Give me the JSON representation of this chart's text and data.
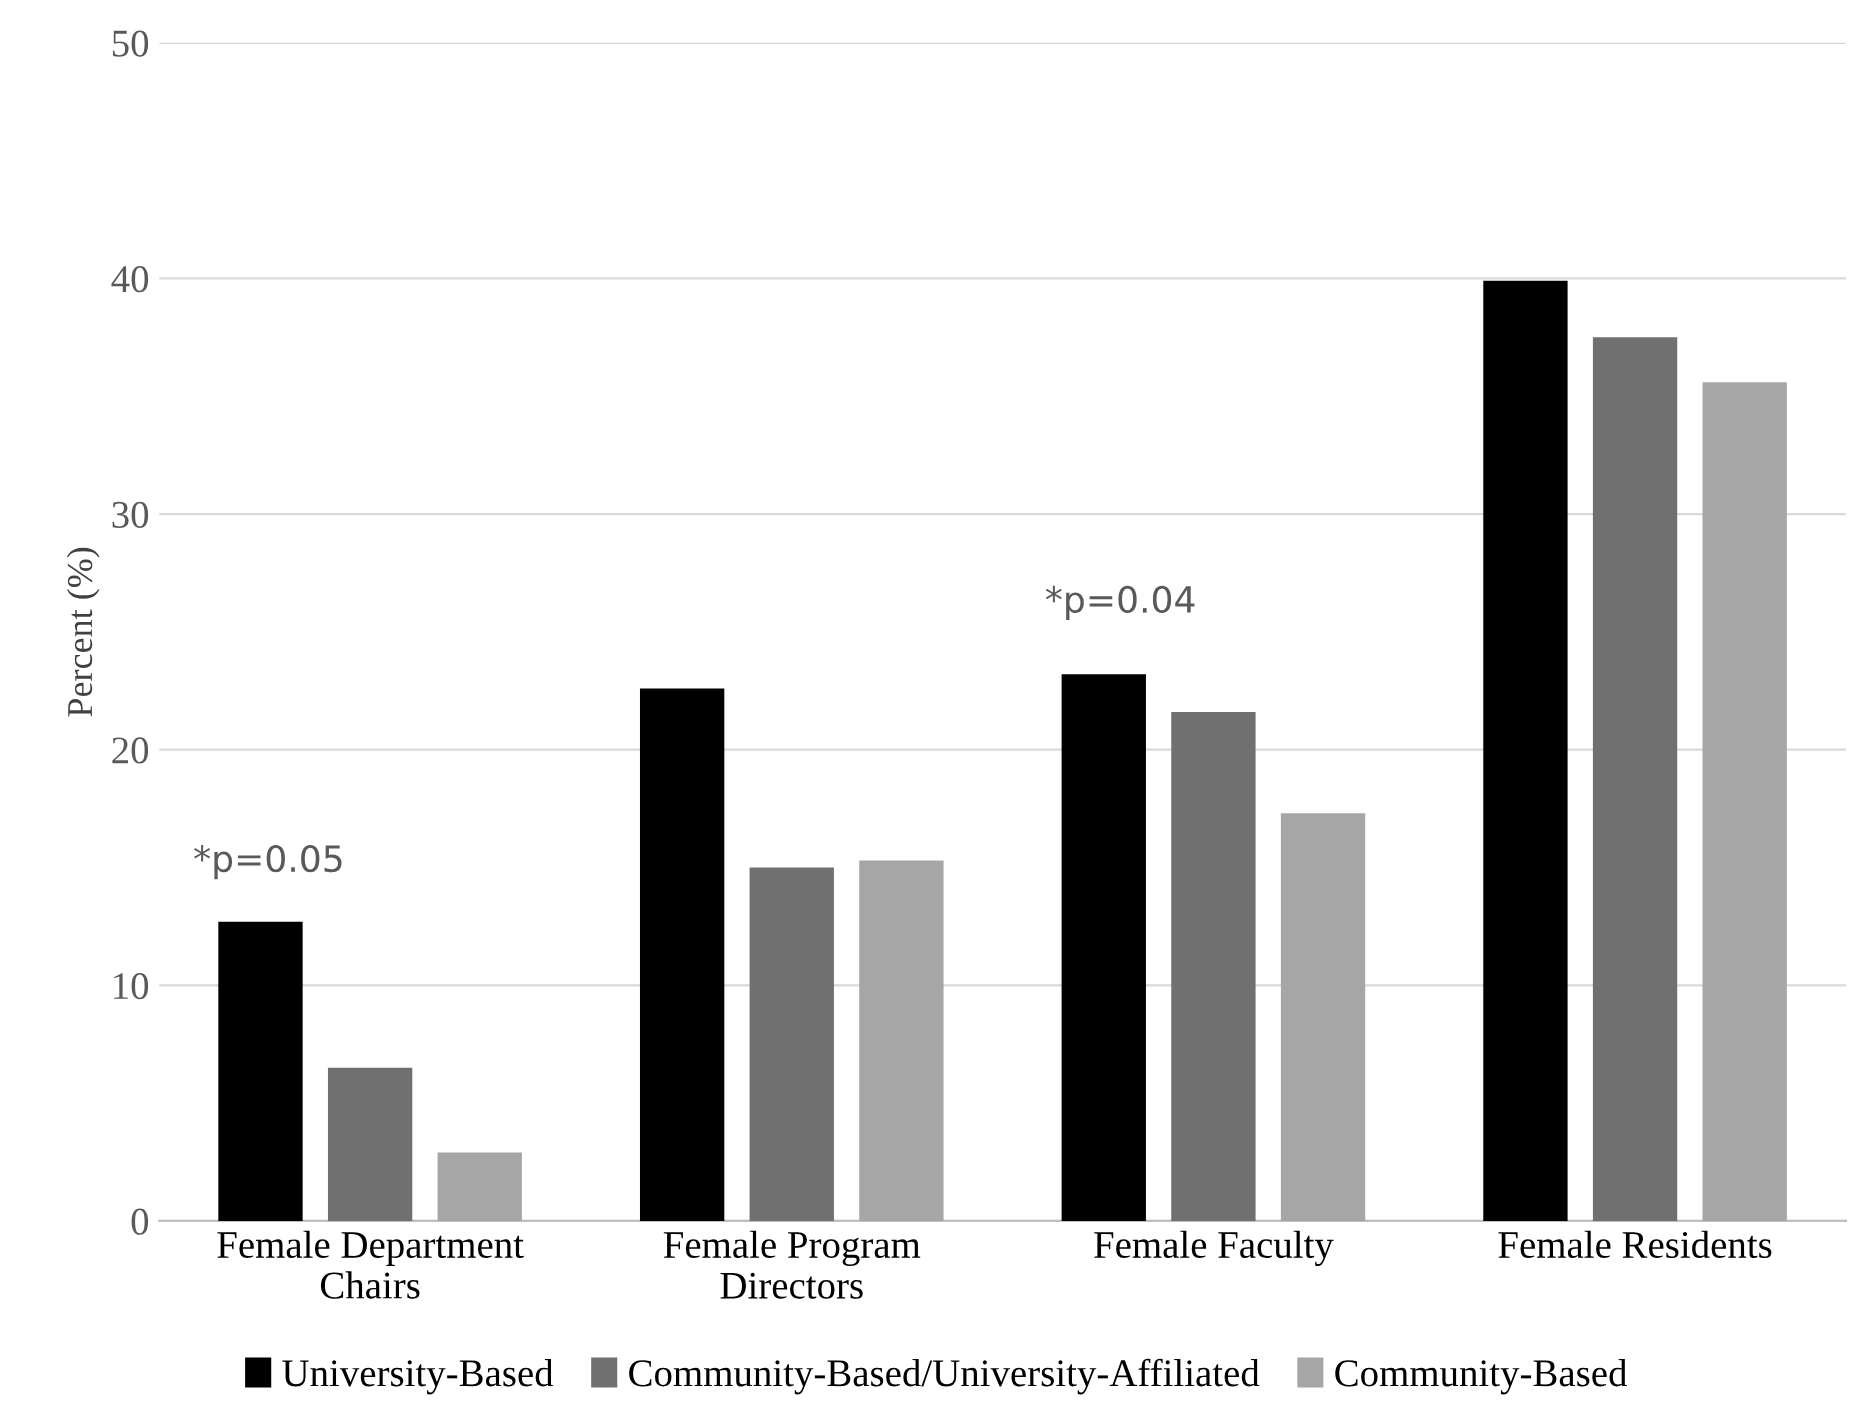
{
  "chart_data": {
    "type": "bar",
    "ylabel": "Percent (%)",
    "categories": [
      "Female Department\nChairs",
      "Female Program\nDirectors",
      "Female Faculty",
      "Female Residents"
    ],
    "series": [
      {
        "name": "University-Based",
        "color": "#000000",
        "values": [
          12.7,
          22.6,
          23.2,
          39.9
        ]
      },
      {
        "name": "Community-Based/University-Affiliated",
        "color": "#707070",
        "values": [
          6.5,
          15.0,
          21.6,
          37.5
        ]
      },
      {
        "name": "Community-Based",
        "color": "#a6a6a6",
        "values": [
          2.9,
          15.3,
          17.3,
          35.6
        ]
      }
    ],
    "ylim": [
      0,
      50
    ],
    "yticks": [
      0,
      10,
      20,
      30,
      40,
      50
    ],
    "grid": "y",
    "legend": "bottom",
    "annotations": [
      "*p=0.05",
      "*p=0.04"
    ]
  }
}
